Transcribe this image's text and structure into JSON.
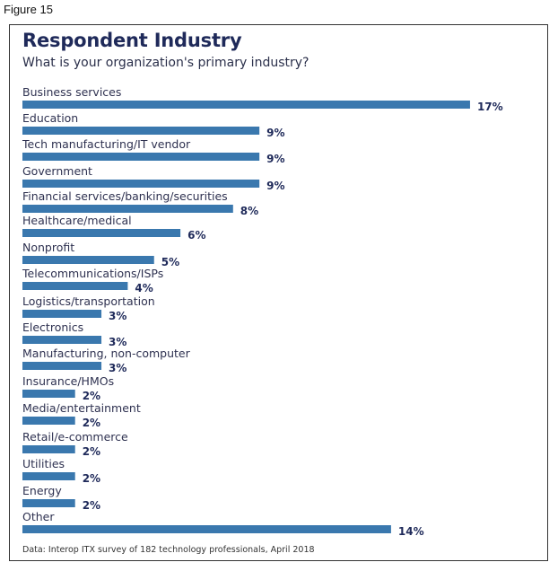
{
  "figure_label": "Figure 15",
  "chart_data": {
    "type": "bar",
    "orientation": "horizontal",
    "title": "Respondent Industry",
    "subtitle": "What is your organization's primary industry?",
    "xlabel": "",
    "ylabel": "",
    "unit": "%",
    "grid": false,
    "legend": "none",
    "categories": [
      "Business services",
      "Education",
      "Tech manufacturing/IT vendor",
      "Government",
      "Financial services/banking/securities",
      "Healthcare/medical",
      "Nonprofit",
      "Telecommunications/ISPs",
      "Logistics/transportation",
      "Electronics",
      "Manufacturing, non-computer",
      "Insurance/HMOs",
      "Media/entertainment",
      "Retail/e-commerce",
      "Utilities",
      "Energy",
      "Other"
    ],
    "values": [
      17,
      9,
      9,
      9,
      8,
      6,
      5,
      4,
      3,
      3,
      3,
      2,
      2,
      2,
      2,
      2,
      14
    ],
    "value_labels": [
      "17%",
      "9%",
      "9%",
      "9%",
      "8%",
      "6%",
      "5%",
      "4%",
      "3%",
      "3%",
      "3%",
      "2%",
      "2%",
      "2%",
      "2%",
      "2%",
      "14%"
    ],
    "bar_color": "#3a78ae",
    "source": "Data: Interop ITX survey of 182 technology professionals, April 2018"
  }
}
